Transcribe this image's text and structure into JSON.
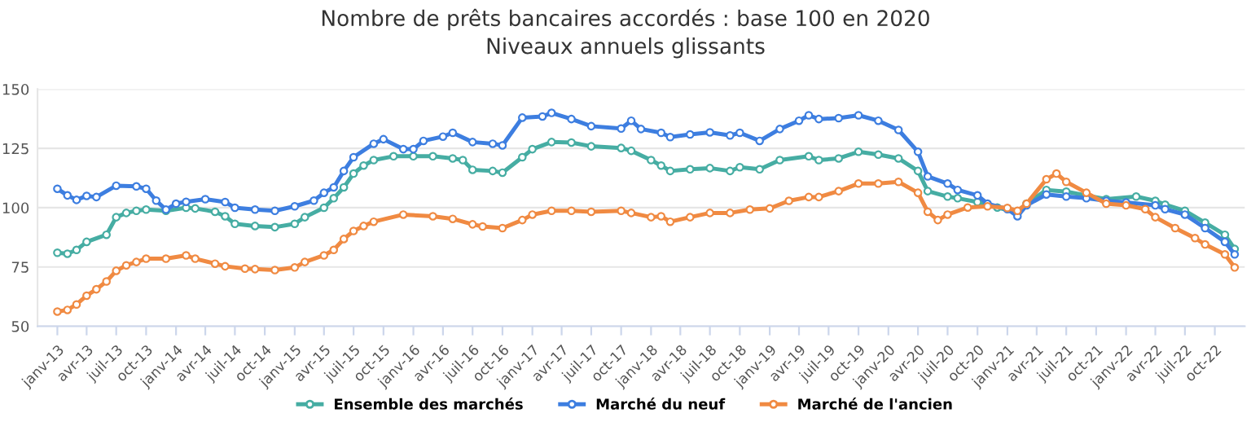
{
  "chart_data": {
    "type": "line",
    "title": "Nombre de prêts bancaires accordés : base 100 en 2020",
    "subtitle": "Niveaux annuels glissants",
    "xlim": [
      "2012-11",
      "2023-01"
    ],
    "ylim": [
      50,
      150
    ],
    "yticks": [
      50,
      75,
      100,
      125,
      150
    ],
    "xticks": [
      {
        "value": "2013-01",
        "label": "janv-13"
      },
      {
        "value": "2013-04",
        "label": "avr-13"
      },
      {
        "value": "2013-07",
        "label": "juil-13"
      },
      {
        "value": "2013-10",
        "label": "oct-13"
      },
      {
        "value": "2014-01",
        "label": "janv-14"
      },
      {
        "value": "2014-04",
        "label": "avr-14"
      },
      {
        "value": "2014-07",
        "label": "juil-14"
      },
      {
        "value": "2014-10",
        "label": "oct-14"
      },
      {
        "value": "2015-01",
        "label": "janv-15"
      },
      {
        "value": "2015-04",
        "label": "avr-15"
      },
      {
        "value": "2015-07",
        "label": "juil-15"
      },
      {
        "value": "2015-10",
        "label": "oct-15"
      },
      {
        "value": "2016-01",
        "label": "janv-16"
      },
      {
        "value": "2016-04",
        "label": "avr-16"
      },
      {
        "value": "2016-07",
        "label": "juil-16"
      },
      {
        "value": "2016-10",
        "label": "oct-16"
      },
      {
        "value": "2017-01",
        "label": "janv-17"
      },
      {
        "value": "2017-04",
        "label": "avr-17"
      },
      {
        "value": "2017-07",
        "label": "juil-17"
      },
      {
        "value": "2017-10",
        "label": "oct-17"
      },
      {
        "value": "2018-01",
        "label": "janv-18"
      },
      {
        "value": "2018-04",
        "label": "avr-18"
      },
      {
        "value": "2018-07",
        "label": "juil-18"
      },
      {
        "value": "2018-10",
        "label": "oct-18"
      },
      {
        "value": "2019-01",
        "label": "janv-19"
      },
      {
        "value": "2019-04",
        "label": "avr-19"
      },
      {
        "value": "2019-07",
        "label": "juil-19"
      },
      {
        "value": "2019-10",
        "label": "oct-19"
      },
      {
        "value": "2020-01",
        "label": "janv-20"
      },
      {
        "value": "2020-04",
        "label": "avr-20"
      },
      {
        "value": "2020-07",
        "label": "juil-20"
      },
      {
        "value": "2020-10",
        "label": "oct-20"
      },
      {
        "value": "2021-01",
        "label": "janv-21"
      },
      {
        "value": "2021-04",
        "label": "avr-21"
      },
      {
        "value": "2021-07",
        "label": "juil-21"
      },
      {
        "value": "2021-10",
        "label": "oct-21"
      },
      {
        "value": "2022-01",
        "label": "janv-22"
      },
      {
        "value": "2022-04",
        "label": "avr-22"
      },
      {
        "value": "2022-07",
        "label": "juil-22"
      },
      {
        "value": "2022-10",
        "label": "oct-22"
      }
    ],
    "grid": "y",
    "legend": "bottom",
    "marker": "circle",
    "line_style": "solid",
    "series": [
      {
        "name": "Ensemble des marchés",
        "color": "#46ada3",
        "x": [
          "2013-01",
          "2013-02",
          "2013-03",
          "2013-04",
          "2013-06",
          "2013-07",
          "2013-08",
          "2013-09",
          "2013-10",
          "2013-12",
          "2014-02",
          "2014-03",
          "2014-05",
          "2014-06",
          "2014-07",
          "2014-09",
          "2014-11",
          "2015-01",
          "2015-02",
          "2015-04",
          "2015-05",
          "2015-06",
          "2015-07",
          "2015-08",
          "2015-09",
          "2015-11",
          "2016-01",
          "2016-03",
          "2016-05",
          "2016-06",
          "2016-07",
          "2016-09",
          "2016-10",
          "2016-12",
          "2017-01",
          "2017-03",
          "2017-05",
          "2017-07",
          "2017-10",
          "2017-11",
          "2018-01",
          "2018-02",
          "2018-03",
          "2018-05",
          "2018-07",
          "2018-09",
          "2018-10",
          "2018-12",
          "2019-02",
          "2019-05",
          "2019-06",
          "2019-08",
          "2019-10",
          "2019-12",
          "2020-02",
          "2020-04",
          "2020-05",
          "2020-07",
          "2020-08",
          "2020-10",
          "2020-12",
          "2021-02",
          "2021-03",
          "2021-05",
          "2021-07",
          "2021-09",
          "2021-11",
          "2022-02",
          "2022-04",
          "2022-05",
          "2022-07",
          "2022-09",
          "2022-11",
          "2022-12"
        ],
        "values": [
          81,
          80.6,
          82.2,
          85.6,
          88.6,
          96,
          97.8,
          98.7,
          99.2,
          98.7,
          100,
          99.7,
          98.3,
          96.4,
          93.2,
          92.3,
          91.8,
          93.2,
          96,
          100,
          104,
          108.6,
          114.4,
          117.8,
          120.1,
          121.7,
          121.7,
          121.7,
          120.8,
          120.1,
          116,
          115.5,
          114.8,
          121.3,
          124.7,
          127.7,
          127.5,
          125.9,
          125.2,
          124,
          120.1,
          117.8,
          115.5,
          116.2,
          116.7,
          115.5,
          117.1,
          116.2,
          120.1,
          121.7,
          120.1,
          120.8,
          123.6,
          122.4,
          120.8,
          115.5,
          107,
          104.7,
          104,
          102.4,
          100.1,
          97.8,
          101.7,
          107.5,
          106.8,
          105.2,
          103.6,
          104.7,
          102.9,
          101.3,
          98.7,
          93.7,
          88.6,
          82.6
        ]
      },
      {
        "name": "Marché du neuf",
        "color": "#3d7ee0",
        "x": [
          "2013-01",
          "2013-02",
          "2013-03",
          "2013-04",
          "2013-05",
          "2013-07",
          "2013-09",
          "2013-10",
          "2013-11",
          "2013-12",
          "2014-01",
          "2014-02",
          "2014-04",
          "2014-06",
          "2014-07",
          "2014-09",
          "2014-11",
          "2015-01",
          "2015-03",
          "2015-04",
          "2015-05",
          "2015-06",
          "2015-07",
          "2015-09",
          "2015-10",
          "2015-12",
          "2016-01",
          "2016-02",
          "2016-04",
          "2016-05",
          "2016-07",
          "2016-09",
          "2016-10",
          "2016-12",
          "2017-02",
          "2017-03",
          "2017-05",
          "2017-07",
          "2017-10",
          "2017-11",
          "2017-12",
          "2018-02",
          "2018-03",
          "2018-05",
          "2018-07",
          "2018-09",
          "2018-10",
          "2018-12",
          "2019-02",
          "2019-04",
          "2019-05",
          "2019-06",
          "2019-08",
          "2019-10",
          "2019-12",
          "2020-02",
          "2020-04",
          "2020-05",
          "2020-07",
          "2020-08",
          "2020-10",
          "2020-11",
          "2021-01",
          "2021-02",
          "2021-03",
          "2021-05",
          "2021-07",
          "2021-09",
          "2021-11",
          "2022-01",
          "2022-04",
          "2022-05",
          "2022-07",
          "2022-09",
          "2022-11",
          "2022-12"
        ],
        "values": [
          108,
          105.2,
          103.3,
          105,
          104.5,
          109.3,
          109,
          108,
          103,
          99.2,
          101.7,
          102.5,
          103.6,
          102.4,
          100,
          99.2,
          98.7,
          100.6,
          103,
          106.3,
          108.6,
          115.5,
          121.3,
          127,
          128.9,
          124.7,
          124.7,
          128.2,
          130,
          131.6,
          127.7,
          127,
          126.3,
          138,
          138.5,
          140,
          137.4,
          134.4,
          133.4,
          136.7,
          133.2,
          131.6,
          129.8,
          130.9,
          131.8,
          130.5,
          131.6,
          128.2,
          133.2,
          136.7,
          139,
          137.4,
          137.8,
          139,
          136.7,
          132.8,
          123.6,
          113.2,
          110.2,
          107.5,
          105.2,
          101.7,
          99.4,
          96.4,
          101,
          105.6,
          104.7,
          104,
          102.9,
          102.2,
          101,
          99.4,
          97.1,
          91.4,
          85.6,
          80.3
        ]
      },
      {
        "name": "Marché de l'ancien",
        "color": "#f08a42",
        "x": [
          "2013-01",
          "2013-02",
          "2013-03",
          "2013-04",
          "2013-05",
          "2013-06",
          "2013-07",
          "2013-08",
          "2013-09",
          "2013-10",
          "2013-12",
          "2014-02",
          "2014-03",
          "2014-05",
          "2014-06",
          "2014-08",
          "2014-09",
          "2014-11",
          "2015-01",
          "2015-02",
          "2015-04",
          "2015-05",
          "2015-06",
          "2015-07",
          "2015-08",
          "2015-09",
          "2015-12",
          "2016-03",
          "2016-05",
          "2016-07",
          "2016-08",
          "2016-10",
          "2016-12",
          "2017-01",
          "2017-03",
          "2017-05",
          "2017-07",
          "2017-10",
          "2017-11",
          "2018-01",
          "2018-02",
          "2018-03",
          "2018-05",
          "2018-07",
          "2018-09",
          "2018-11",
          "2019-01",
          "2019-03",
          "2019-05",
          "2019-06",
          "2019-08",
          "2019-10",
          "2019-12",
          "2020-02",
          "2020-04",
          "2020-05",
          "2020-06",
          "2020-07",
          "2020-09",
          "2020-11",
          "2021-01",
          "2021-02",
          "2021-03",
          "2021-05",
          "2021-06",
          "2021-07",
          "2021-09",
          "2021-11",
          "2022-01",
          "2022-03",
          "2022-04",
          "2022-06",
          "2022-08",
          "2022-09",
          "2022-11",
          "2022-12"
        ],
        "values": [
          56.2,
          56.9,
          59.2,
          62.9,
          65.6,
          68.9,
          73.4,
          75.7,
          77.1,
          78.5,
          78.5,
          79.9,
          78.5,
          76.4,
          75.3,
          74.3,
          74.1,
          73.7,
          74.8,
          77.1,
          79.9,
          82.2,
          86.8,
          90.2,
          92.3,
          94.1,
          97.1,
          96.4,
          95.3,
          93,
          92.1,
          91.4,
          94.8,
          97.1,
          98.7,
          98.7,
          98.3,
          98.7,
          97.8,
          96,
          96.4,
          94.1,
          96,
          97.8,
          97.8,
          99.2,
          99.7,
          102.9,
          104.5,
          104.5,
          107,
          110.2,
          110.2,
          110.9,
          106.3,
          98.3,
          94.8,
          97.1,
          100.1,
          100.6,
          99.9,
          98.7,
          101.7,
          112,
          114.4,
          110.9,
          106.3,
          101.7,
          101,
          99.4,
          96,
          91.4,
          87.2,
          84.5,
          80.3,
          74.8
        ]
      }
    ]
  }
}
